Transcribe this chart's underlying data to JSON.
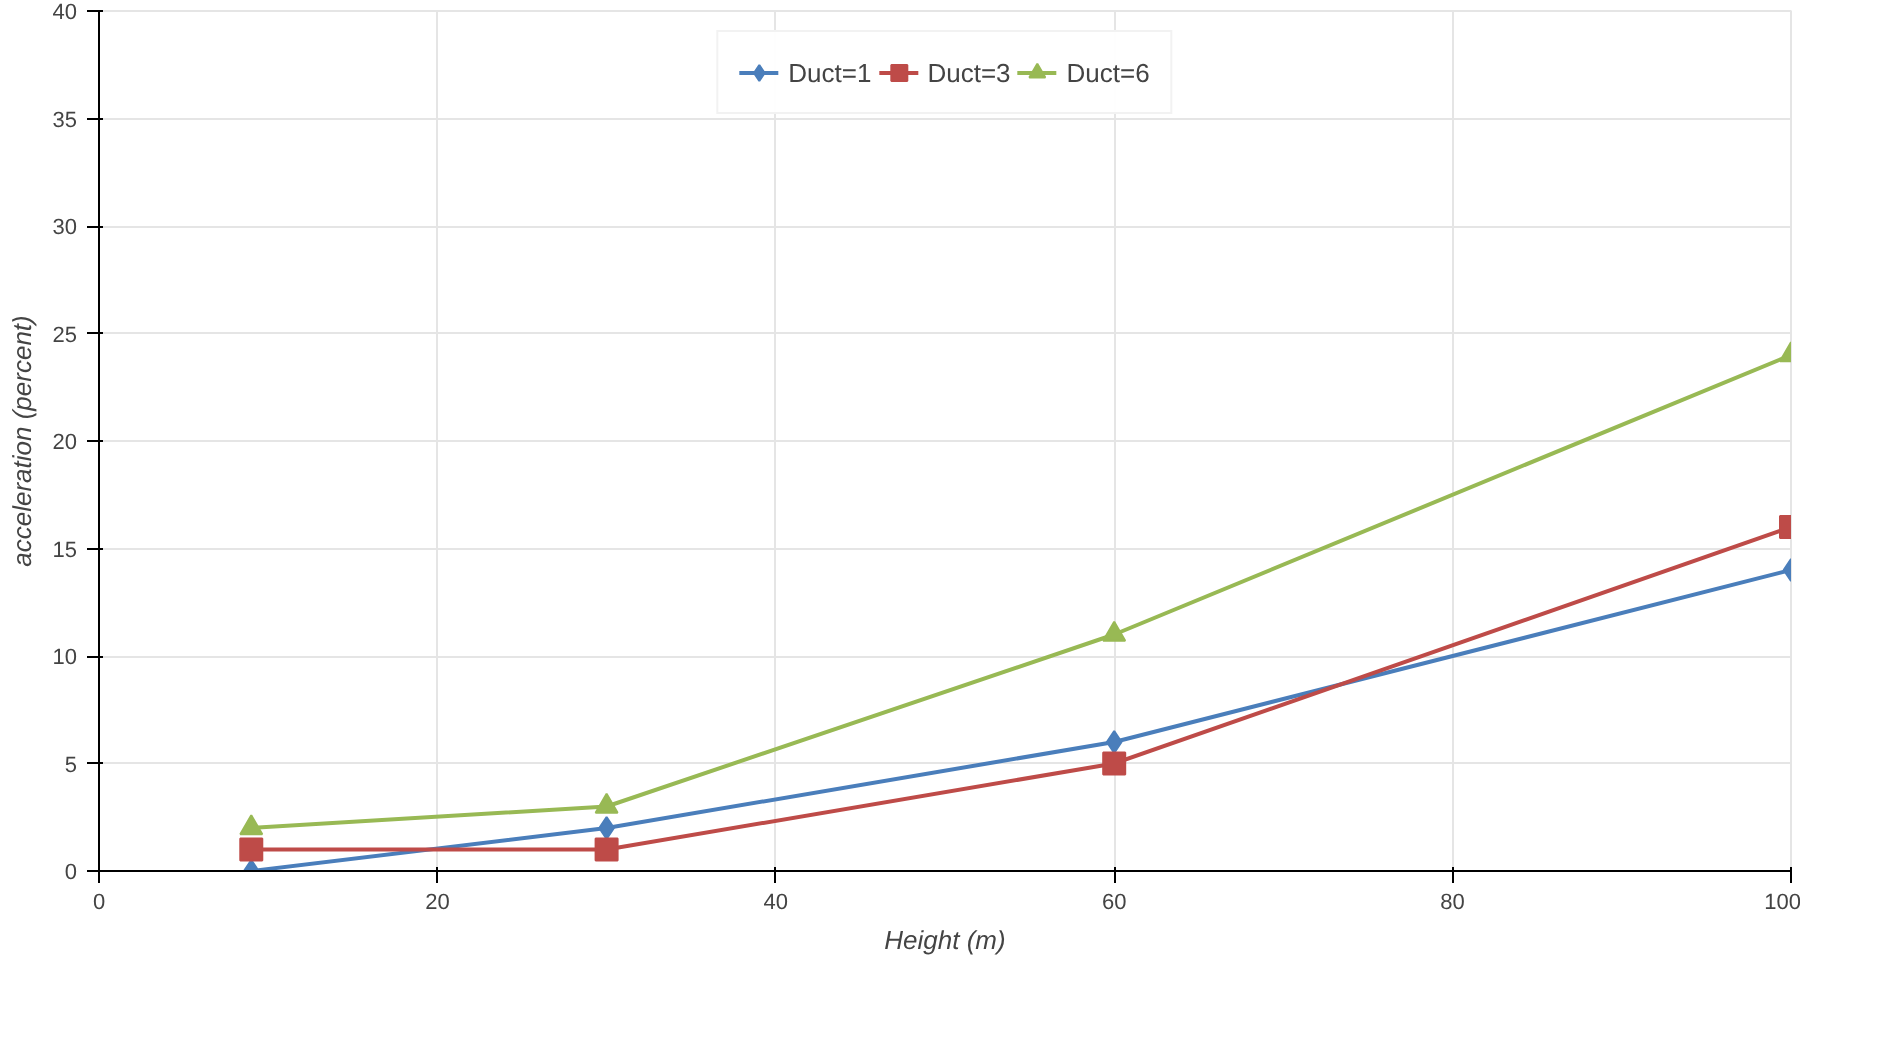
{
  "chart_data": {
    "type": "line",
    "xlabel": "Height (m)",
    "ylabel": "acceleration (percent)",
    "x": [
      9,
      30,
      60,
      100
    ],
    "series": [
      {
        "name": "Duct=1",
        "color": "#4a7ebb",
        "marker": "diamond",
        "values": [
          0,
          2,
          6,
          14
        ]
      },
      {
        "name": "Duct=3",
        "color": "#be4b48",
        "marker": "square",
        "values": [
          1,
          1,
          5,
          16
        ]
      },
      {
        "name": "Duct=6",
        "color": "#98b954",
        "marker": "triangle",
        "values": [
          2,
          3,
          11,
          24
        ]
      }
    ],
    "xlim": [
      0,
      100
    ],
    "xticks": [
      0,
      20,
      40,
      60,
      80,
      100
    ],
    "ylim": [
      0,
      40
    ],
    "yticks": [
      0,
      5,
      10,
      15,
      20,
      25,
      30,
      35,
      40
    ],
    "grid": true,
    "legend": "top"
  }
}
